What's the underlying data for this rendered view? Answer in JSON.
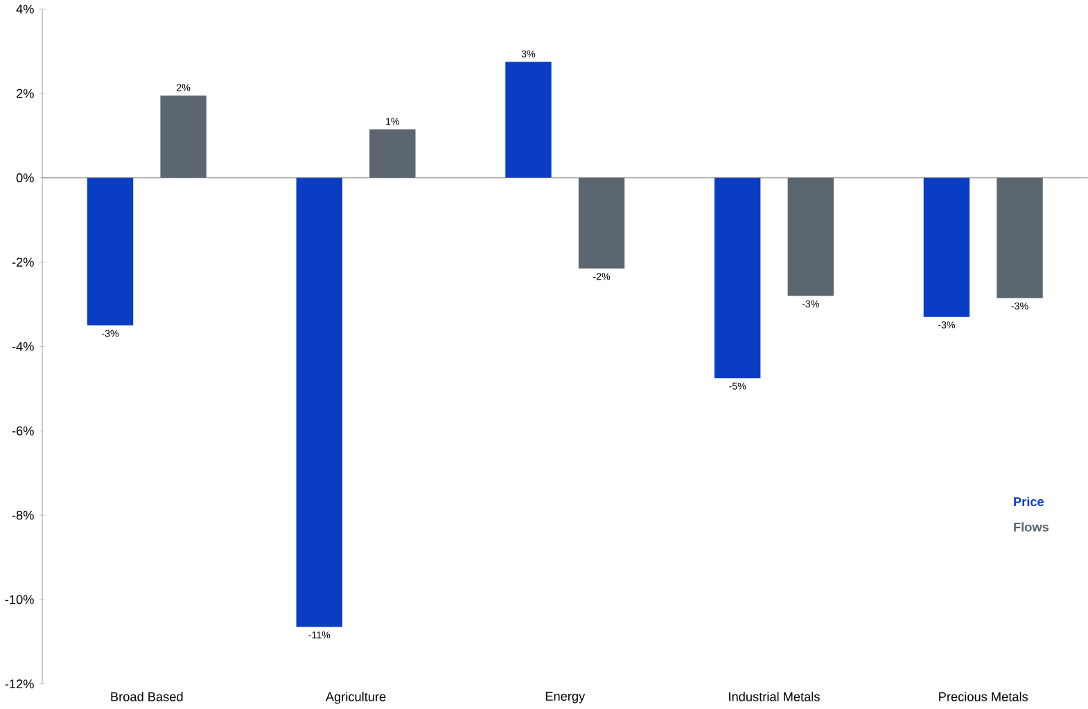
{
  "chart_data": {
    "type": "bar",
    "categories": [
      "Broad Based",
      "Agriculture",
      "Energy",
      "Industrial Metals",
      "Precious Metals"
    ],
    "series": [
      {
        "name": "Price",
        "color": "#0a3cc4",
        "values": [
          -3.5,
          -10.65,
          2.75,
          -4.75,
          -3.3
        ],
        "value_labels": [
          "-3%",
          "-11%",
          "3%",
          "-5%",
          "-3%"
        ]
      },
      {
        "name": "Flows",
        "color": "#5b6670",
        "values": [
          1.95,
          1.15,
          -2.15,
          -2.8,
          -2.85
        ],
        "value_labels": [
          "2%",
          "1%",
          "-2%",
          "-3%",
          "-3%"
        ]
      }
    ],
    "ylim": [
      -12,
      4
    ],
    "yticks": [
      {
        "value": -12,
        "label": "-12%"
      },
      {
        "value": -10,
        "label": "-10%"
      },
      {
        "value": -8,
        "label": "-8%"
      },
      {
        "value": -6,
        "label": "-6%"
      },
      {
        "value": -4,
        "label": "-4%"
      },
      {
        "value": -2,
        "label": "-2%"
      },
      {
        "value": 0,
        "label": "0%"
      },
      {
        "value": 2,
        "label": "2%"
      },
      {
        "value": 4,
        "label": "4%"
      }
    ],
    "legend": "right"
  }
}
